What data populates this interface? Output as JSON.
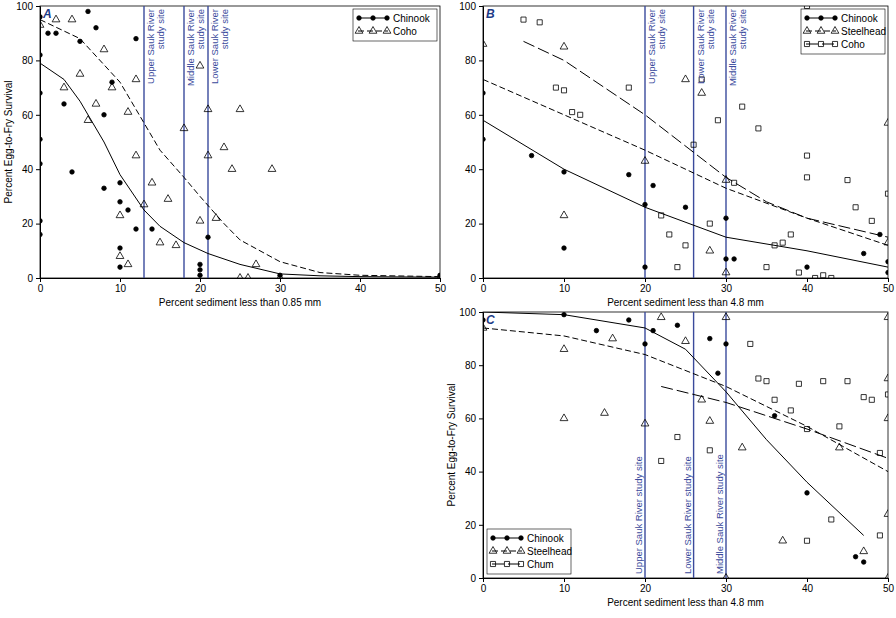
{
  "chart_data": [
    {
      "type": "scatter",
      "title": "A",
      "x_label": "Percent sediment less than 0.85 mm",
      "y_label": "Percent Egg-to-Fry Survival",
      "xlim": [
        0,
        50
      ],
      "ylim": [
        0,
        100
      ],
      "xticks": [
        0,
        10,
        20,
        30,
        40,
        50
      ],
      "yticks": [
        0,
        20,
        40,
        60,
        80,
        100
      ],
      "legend": "upper right",
      "annotations": [
        {
          "x": 13,
          "label": [
            "Upper Sauk River",
            "study site"
          ]
        },
        {
          "x": 18,
          "label": [
            "Middle Sauk River",
            "study site"
          ]
        },
        {
          "x": 21,
          "label": [
            "Lower Sauk River",
            "study site"
          ]
        }
      ],
      "series": [
        {
          "name": "Chinook",
          "color": "#000000",
          "marker": "circle",
          "line_style": "solid",
          "x": [
            0,
            0,
            0,
            0,
            0,
            0,
            0,
            1,
            2,
            3,
            4,
            5,
            6,
            7,
            8,
            8,
            9,
            10,
            10,
            10,
            10,
            11,
            12,
            12,
            14,
            20,
            20,
            20,
            21,
            30,
            50
          ],
          "values": [
            96,
            82,
            68,
            51,
            42,
            21,
            16,
            90,
            90,
            64,
            39,
            87,
            98,
            92,
            33,
            60,
            72,
            35,
            28,
            11,
            4,
            25,
            88,
            18,
            18,
            1,
            3,
            5,
            15,
            1,
            1
          ],
          "curve": {
            "x": [
              0,
              3,
              5,
              8,
              10,
              13,
              15,
              18,
              21,
              25,
              30,
              35,
              40,
              50
            ],
            "values": [
              79,
              73,
              65,
              50,
              38,
              25,
              19,
              13,
              9,
              5,
              1.5,
              0.8,
              0.5,
              0.3
            ]
          }
        },
        {
          "name": "Coho",
          "color": "#000000",
          "marker": "triangle",
          "line_style": "dashed",
          "x": [
            0,
            2,
            3,
            4,
            5,
            6,
            7,
            8,
            9,
            10,
            10,
            11,
            11,
            12,
            12,
            13,
            14,
            15,
            16,
            17,
            18,
            20,
            20,
            21,
            21,
            22,
            23,
            24,
            25,
            25,
            26,
            27,
            29,
            30,
            50
          ],
          "values": [
            93,
            95,
            70,
            95,
            75,
            58,
            64,
            84,
            70,
            8,
            23,
            5,
            61,
            73,
            45,
            27,
            35,
            13,
            29,
            12,
            55,
            78,
            21,
            45,
            62,
            22,
            48,
            40,
            0,
            62,
            0,
            5,
            40,
            0,
            0
          ],
          "curve": {
            "x": [
              0,
              5,
              10,
              13,
              15,
              18,
              20,
              23,
              25,
              30,
              35,
              40,
              50
            ],
            "values": [
              95,
              88,
              72,
              57,
              47,
              37,
              30,
              20,
              14,
              6,
              2,
              1,
              0.5
            ]
          }
        }
      ]
    },
    {
      "type": "scatter",
      "title": "B",
      "x_label": "Percent sediment less than 4.8 mm",
      "xlim": [
        0,
        50
      ],
      "ylim": [
        0,
        100
      ],
      "xticks": [
        0,
        10,
        20,
        30,
        40,
        50
      ],
      "yticks": [
        0,
        20,
        40,
        60,
        80,
        100
      ],
      "legend": "upper right",
      "annotations": [
        {
          "x": 20,
          "label": [
            "Upper Sauk River",
            "study site"
          ]
        },
        {
          "x": 26,
          "label": [
            "Lower Sauk River",
            "study site"
          ]
        },
        {
          "x": 30,
          "label": [
            "Middle Sauk River",
            "study site"
          ]
        }
      ],
      "series": [
        {
          "name": "Chinook",
          "color": "#000000",
          "marker": "circle",
          "line_style": "solid",
          "x": [
            0,
            0,
            6,
            10,
            10,
            18,
            20,
            20,
            21,
            25,
            30,
            30,
            31,
            40,
            47,
            49,
            50,
            50
          ],
          "values": [
            68,
            51,
            45,
            39,
            11,
            38,
            4,
            27,
            34,
            26,
            22,
            7,
            7,
            4,
            9,
            16,
            2,
            6
          ],
          "curve": {
            "x": [
              0,
              10,
              20,
              30,
              40,
              50
            ],
            "values": [
              58,
              40,
              26,
              15,
              10,
              4
            ]
          }
        },
        {
          "name": "Steelhead",
          "color": "#000000",
          "marker": "triangle",
          "line_style": "dashed",
          "x": [
            0,
            10,
            10,
            20,
            25,
            27,
            28,
            30,
            30,
            50,
            50
          ],
          "values": [
            86,
            85,
            23,
            43,
            73,
            68,
            10,
            2,
            36,
            57,
            13
          ],
          "curve": {
            "x": [
              0,
              10,
              20,
              30,
              40,
              50
            ],
            "values": [
              73,
              60,
              47,
              33,
              22,
              12
            ]
          }
        },
        {
          "name": "Coho",
          "color": "#000000",
          "marker": "square",
          "line_style": "long-dash",
          "x": [
            5,
            7,
            9,
            10,
            11,
            12,
            18,
            22,
            23,
            24,
            25,
            26,
            27,
            28,
            29,
            31,
            32,
            34,
            35,
            36,
            37,
            38,
            39,
            40,
            40,
            41,
            42,
            43,
            45,
            46,
            48,
            50,
            40
          ],
          "values": [
            95,
            94,
            70,
            69,
            61,
            60,
            70,
            23,
            16,
            4,
            12,
            49,
            73,
            20,
            58,
            35,
            63,
            55,
            4,
            12,
            13,
            16,
            2,
            37,
            45,
            0,
            1,
            0,
            36,
            26,
            21,
            31,
            100
          ],
          "curve": {
            "x": [
              5,
              10,
              20,
              30,
              35,
              40,
              50
            ],
            "values": [
              87,
              80,
              60,
              37,
              28,
              22,
              15
            ]
          }
        }
      ]
    },
    {
      "type": "scatter",
      "title": "C",
      "x_label": "Percent sediment less than 4.8 mm",
      "y_label": "Percent Egg-to-Fry Survival",
      "xlim": [
        0,
        50
      ],
      "ylim": [
        0,
        100
      ],
      "xticks": [
        0,
        10,
        20,
        30,
        40,
        50
      ],
      "yticks": [
        0,
        20,
        40,
        60,
        80,
        100
      ],
      "legend": "lower left",
      "annotations": [
        {
          "x": 20,
          "label": [
            "Upper Sauk River study site"
          ]
        },
        {
          "x": 26,
          "label": [
            "Lower Sauk River study site"
          ]
        },
        {
          "x": 30,
          "label": [
            "Middle Sauk River study site"
          ]
        }
      ],
      "series": [
        {
          "name": "Chinook",
          "color": "#000000",
          "marker": "circle",
          "line_style": "solid",
          "x": [
            0,
            10,
            14,
            18,
            20,
            21,
            24,
            28,
            29,
            30,
            36,
            40,
            46,
            47
          ],
          "values": [
            97,
            99,
            93,
            97,
            88,
            93,
            95,
            90,
            77,
            88,
            61,
            32,
            8,
            6
          ],
          "curve": {
            "x": [
              0,
              10,
              20,
              25,
              30,
              35,
              40,
              47
            ],
            "values": [
              100,
              99,
              94,
              86,
              70,
              52,
              36,
              16
            ]
          }
        },
        {
          "name": "Steelhead",
          "color": "#000000",
          "marker": "triangle",
          "line_style": "dashed",
          "x": [
            0,
            10,
            10,
            15,
            16,
            20,
            22,
            25,
            27,
            28,
            30,
            30,
            32,
            37,
            44,
            47,
            50,
            50,
            50,
            50,
            50
          ],
          "values": [
            94,
            60,
            86,
            62,
            90,
            58,
            98,
            89,
            67,
            59,
            0,
            98,
            49,
            14,
            49,
            10,
            98,
            75,
            60,
            24,
            0
          ],
          "curve": {
            "x": [
              0,
              10,
              20,
              30,
              40,
              50
            ],
            "values": [
              94,
              91,
              84,
              72,
              57,
              40
            ]
          }
        },
        {
          "name": "Chum",
          "color": "#000000",
          "marker": "square",
          "line_style": "long-dash",
          "x": [
            22,
            24,
            28,
            33,
            34,
            35,
            36,
            38,
            39,
            40,
            40,
            42,
            43,
            44,
            45,
            47,
            48,
            49,
            50,
            49
          ],
          "values": [
            44,
            53,
            48,
            88,
            75,
            74,
            67,
            63,
            73,
            14,
            56,
            74,
            22,
            57,
            74,
            68,
            67,
            16,
            69,
            47
          ],
          "curve": {
            "x": [
              22,
              30,
              40,
              50
            ],
            "values": [
              72,
              66,
              56,
              45
            ]
          }
        }
      ]
    }
  ]
}
